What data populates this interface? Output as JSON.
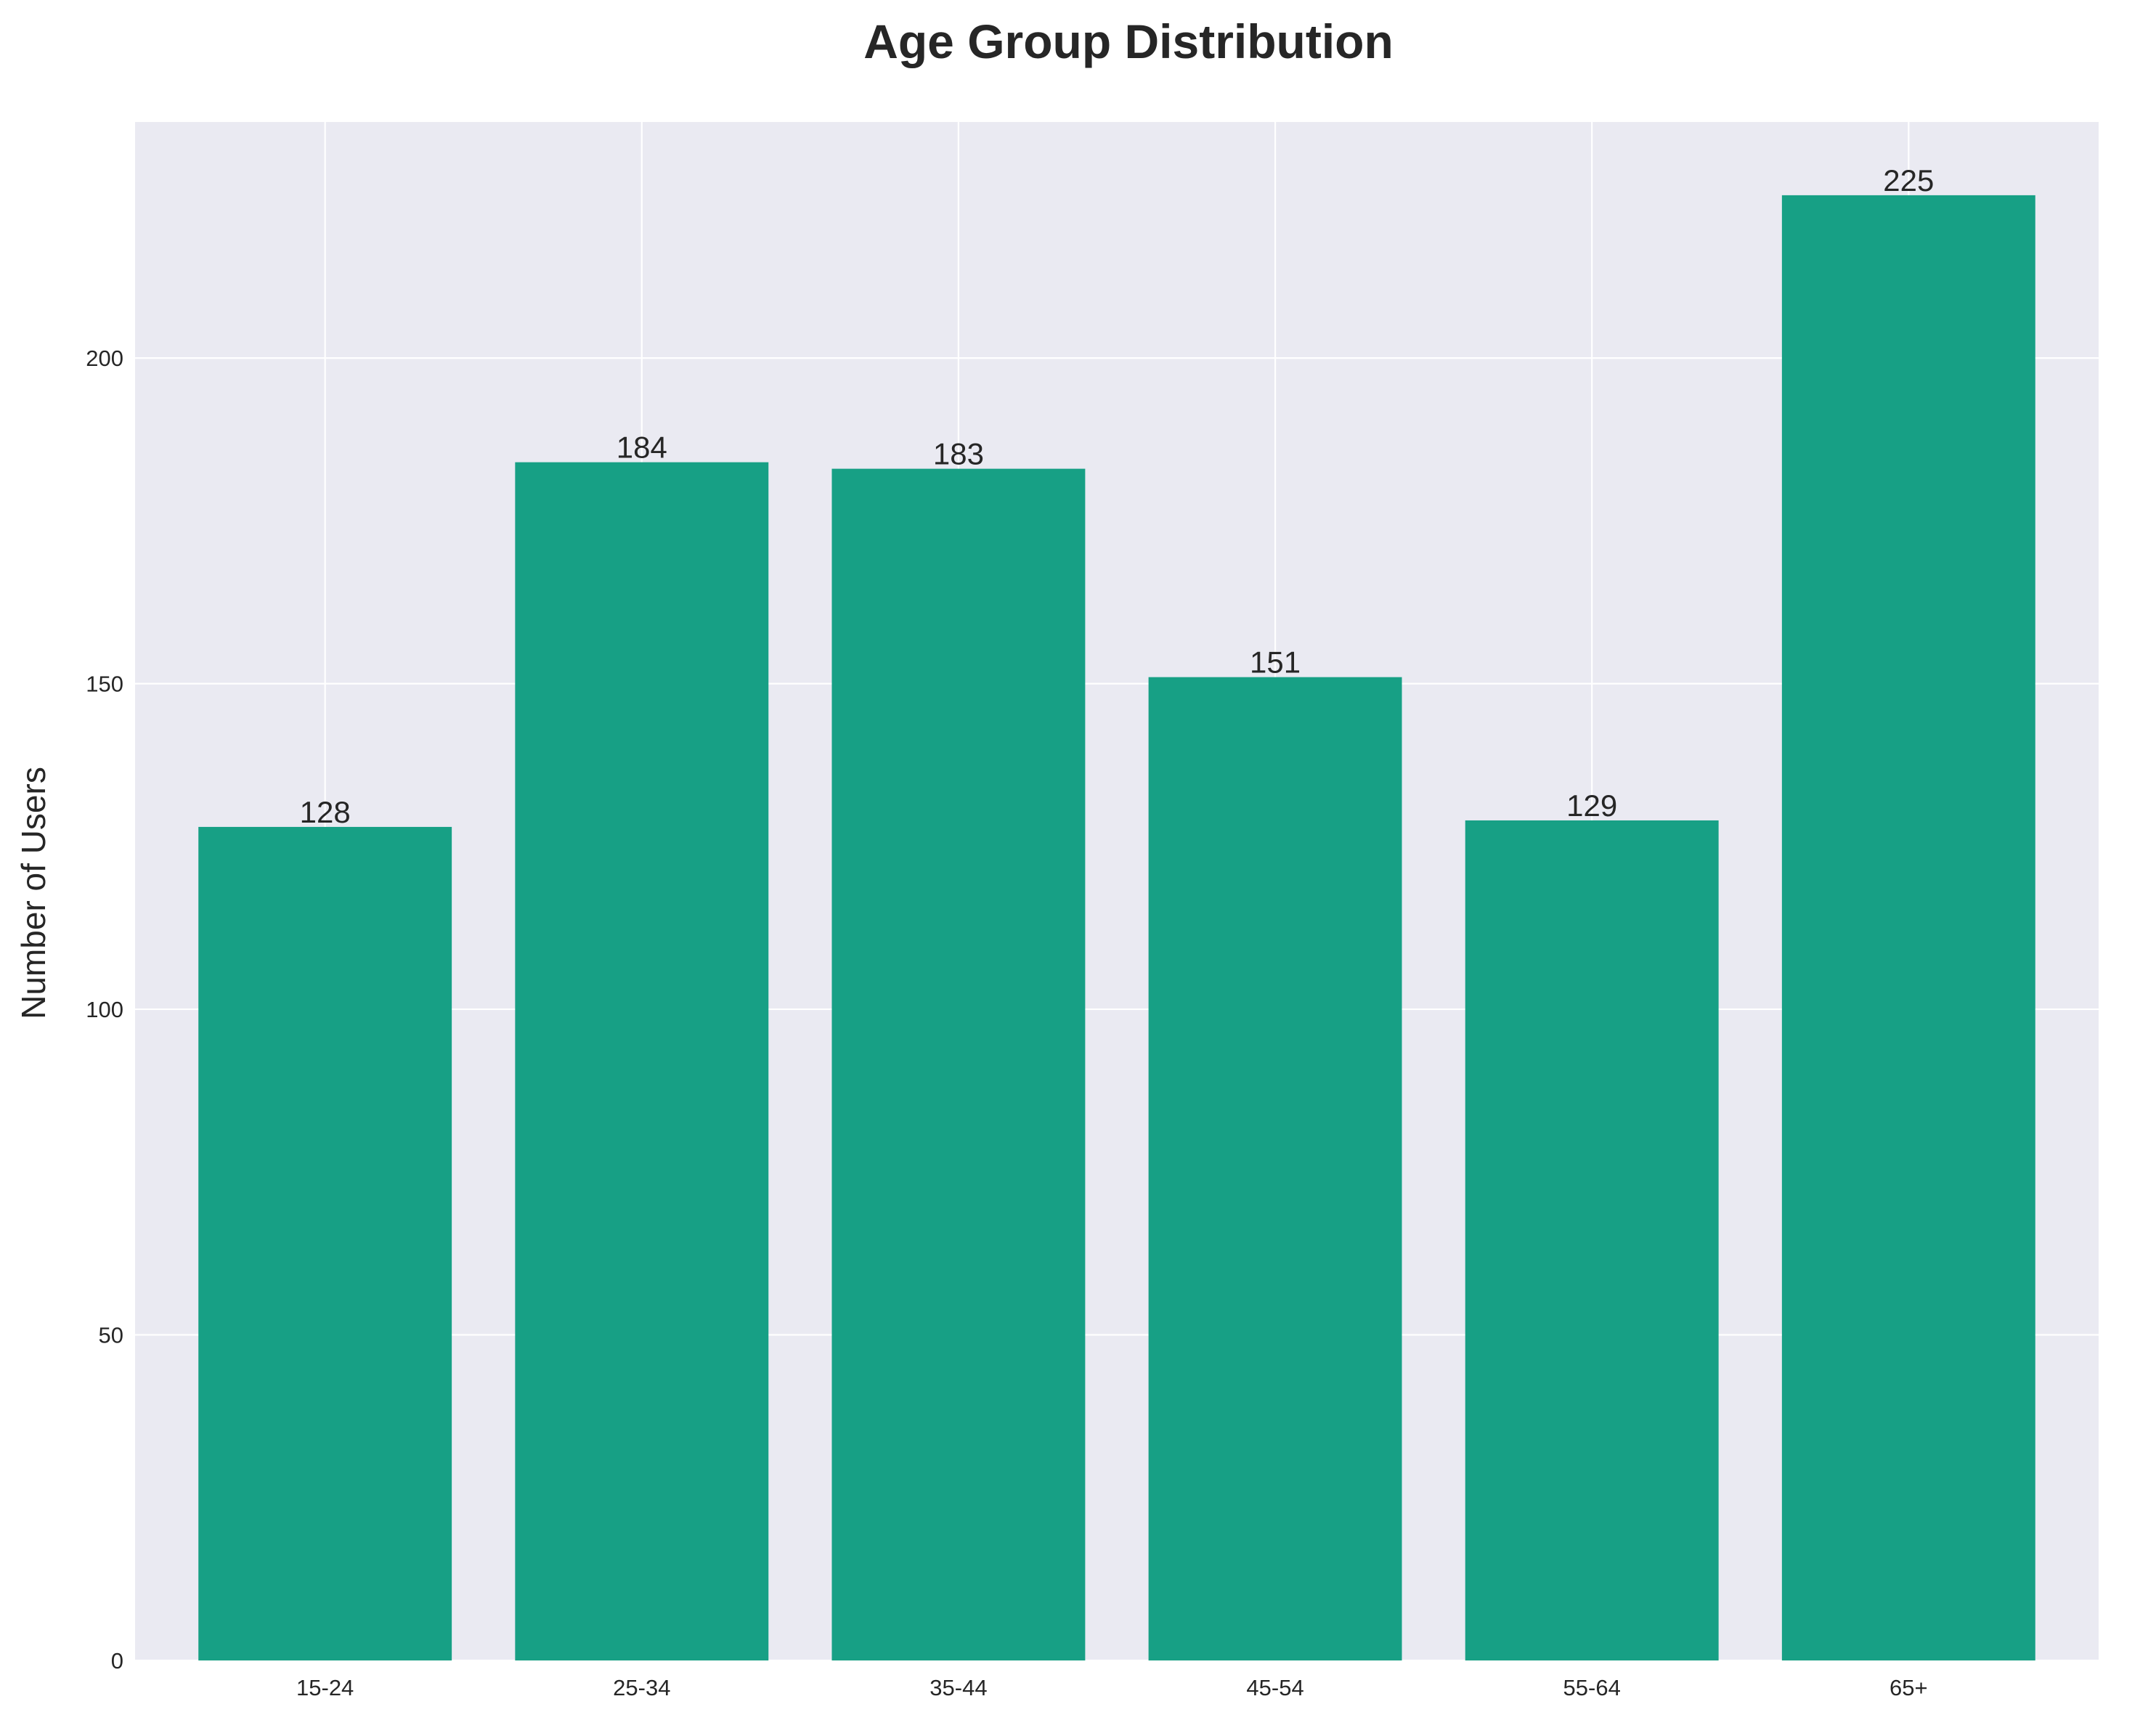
{
  "chart_data": {
    "type": "bar",
    "title": "Age Group Distribution",
    "xlabel": "",
    "ylabel": "Number of Users",
    "categories": [
      "15-24",
      "25-34",
      "35-44",
      "45-54",
      "55-64",
      "65+"
    ],
    "values": [
      128,
      184,
      183,
      151,
      129,
      225
    ],
    "value_labels": [
      "128",
      "184",
      "183",
      "151",
      "129",
      "225"
    ],
    "ylim": [
      0,
      236.25
    ],
    "yticks": [
      0,
      50,
      100,
      150,
      200
    ],
    "ytick_labels": [
      "0",
      "50",
      "100",
      "150",
      "200"
    ],
    "grid": true,
    "legend": "none",
    "colors": {
      "bar": "#17a085",
      "plot_background": "#eaeaf2",
      "grid": "#ffffff",
      "text": "#262626"
    }
  }
}
